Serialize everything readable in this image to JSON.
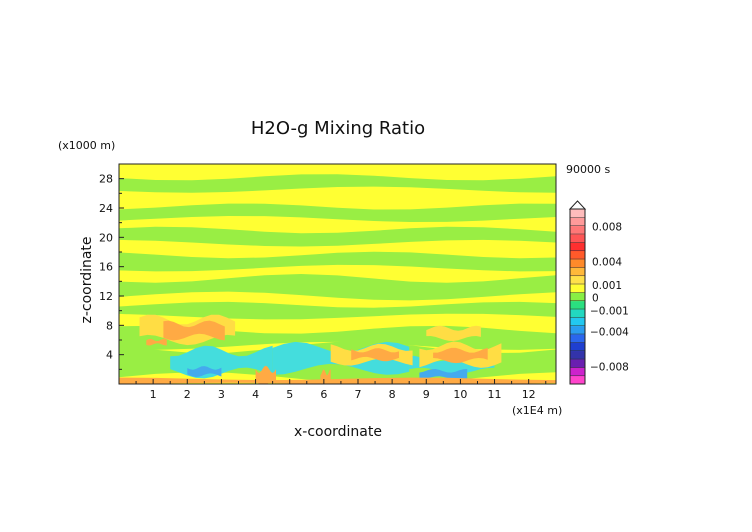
{
  "chart_data": {
    "type": "heatmap",
    "title": "H2O-g Mixing Ratio",
    "time_label": "90000 s",
    "xlabel": "x-coordinate",
    "ylabel": "z-coordinate",
    "x_unit": "(x1E4 m)",
    "y_unit": "(x1000 m)",
    "xlim": [
      0,
      12.8
    ],
    "ylim": [
      0,
      30
    ],
    "x_ticks": [
      1,
      2,
      3,
      4,
      5,
      6,
      7,
      8,
      9,
      10,
      11,
      12
    ],
    "y_ticks": [
      4,
      8,
      12,
      16,
      20,
      24,
      28
    ],
    "colorbar": {
      "range": [
        -0.01,
        0.01
      ],
      "labels": [
        {
          "value": 0.008,
          "text": "0.008"
        },
        {
          "value": 0.004,
          "text": "0.004"
        },
        {
          "value": 0.001,
          "text": "0.001"
        },
        {
          "value": 0,
          "text": "0"
        },
        {
          "value": -0.001,
          "text": "−0.001"
        },
        {
          "value": -0.004,
          "text": "−0.004"
        },
        {
          "value": -0.008,
          "text": "−0.008"
        }
      ],
      "colors": [
        "#ff44cc",
        "#cc22cc",
        "#6a1fb0",
        "#3333aa",
        "#1f3fd0",
        "#2a66ee",
        "#2a9cf0",
        "#22c8f0",
        "#22d8c0",
        "#2adf80",
        "#88ee44",
        "#ffff33",
        "#ffe14a",
        "#ffb83a",
        "#ff8a2a",
        "#ff5a2a",
        "#ff3030",
        "#ff5555",
        "#ff7777",
        "#ff9a9a",
        "#ffbcbc"
      ]
    },
    "level_colors": {
      "neg_small": "#99ee44",
      "zero": "#ffff33",
      "pos_small": "#ffdd44",
      "pos_mid": "#ffaa44",
      "neg_mid": "#44dddd",
      "neg_large": "#44aaee"
    },
    "contour_fields": [
      {
        "level": "neg_small",
        "x": [
          0,
          12.8
        ],
        "y": [
          26.5,
          28.2
        ]
      },
      {
        "level": "neg_small",
        "x": [
          0,
          12.8
        ],
        "y": [
          22.5,
          24.2
        ]
      },
      {
        "level": "neg_small",
        "x": [
          0,
          12.8
        ],
        "y": [
          19.2,
          21.0
        ]
      },
      {
        "level": "neg_small",
        "x": [
          0,
          12.8
        ],
        "y": [
          15.8,
          17.6
        ]
      },
      {
        "level": "neg_small",
        "x": [
          0,
          12.8
        ],
        "y": [
          12.0,
          14.4
        ]
      },
      {
        "level": "neg_small",
        "x": [
          0,
          12.8
        ],
        "y": [
          9.2,
          10.8
        ]
      },
      {
        "level": "neg_small",
        "x": [
          0,
          12.8
        ],
        "y": [
          5.2,
          7.4
        ]
      },
      {
        "level": "neg_small",
        "x": [
          0,
          12.8
        ],
        "y": [
          0.8,
          5.0
        ]
      },
      {
        "level": "neg_mid",
        "x": [
          1.5,
          4.5
        ],
        "y": [
          1.5,
          4.5
        ]
      },
      {
        "level": "neg_mid",
        "x": [
          4.5,
          8.5
        ],
        "y": [
          2.0,
          5.0
        ]
      },
      {
        "level": "neg_mid",
        "x": [
          8.5,
          11.0
        ],
        "y": [
          1.8,
          3.5
        ]
      },
      {
        "level": "neg_large",
        "x": [
          2.0,
          3.0
        ],
        "y": [
          1.2,
          2.2
        ]
      },
      {
        "level": "neg_large",
        "x": [
          8.8,
          10.2
        ],
        "y": [
          0.8,
          1.8
        ]
      },
      {
        "level": "pos_small",
        "x": [
          0.6,
          3.4
        ],
        "y": [
          6.0,
          8.8
        ]
      },
      {
        "level": "pos_small",
        "x": [
          6.2,
          8.6
        ],
        "y": [
          3.0,
          5.0
        ]
      },
      {
        "level": "pos_small",
        "x": [
          8.8,
          11.2
        ],
        "y": [
          2.8,
          5.2
        ]
      },
      {
        "level": "pos_small",
        "x": [
          9.0,
          10.6
        ],
        "y": [
          6.2,
          7.6
        ]
      },
      {
        "level": "pos_mid",
        "x": [
          1.3,
          3.1
        ],
        "y": [
          6.4,
          8.2
        ]
      },
      {
        "level": "pos_mid",
        "x": [
          6.8,
          8.2
        ],
        "y": [
          3.4,
          4.6
        ]
      },
      {
        "level": "pos_mid",
        "x": [
          9.2,
          10.8
        ],
        "y": [
          3.2,
          4.6
        ]
      },
      {
        "level": "pos_mid",
        "x": [
          0.8,
          1.4
        ],
        "y": [
          5.4,
          6.0
        ]
      },
      {
        "level": "pos_mid",
        "x": [
          0,
          12.8
        ],
        "y": [
          0,
          0.7
        ]
      },
      {
        "level": "pos_mid",
        "x": [
          4.0,
          4.6
        ],
        "y": [
          0,
          2.0
        ]
      },
      {
        "level": "pos_mid",
        "x": [
          5.9,
          6.2
        ],
        "y": [
          0,
          1.6
        ]
      }
    ]
  }
}
